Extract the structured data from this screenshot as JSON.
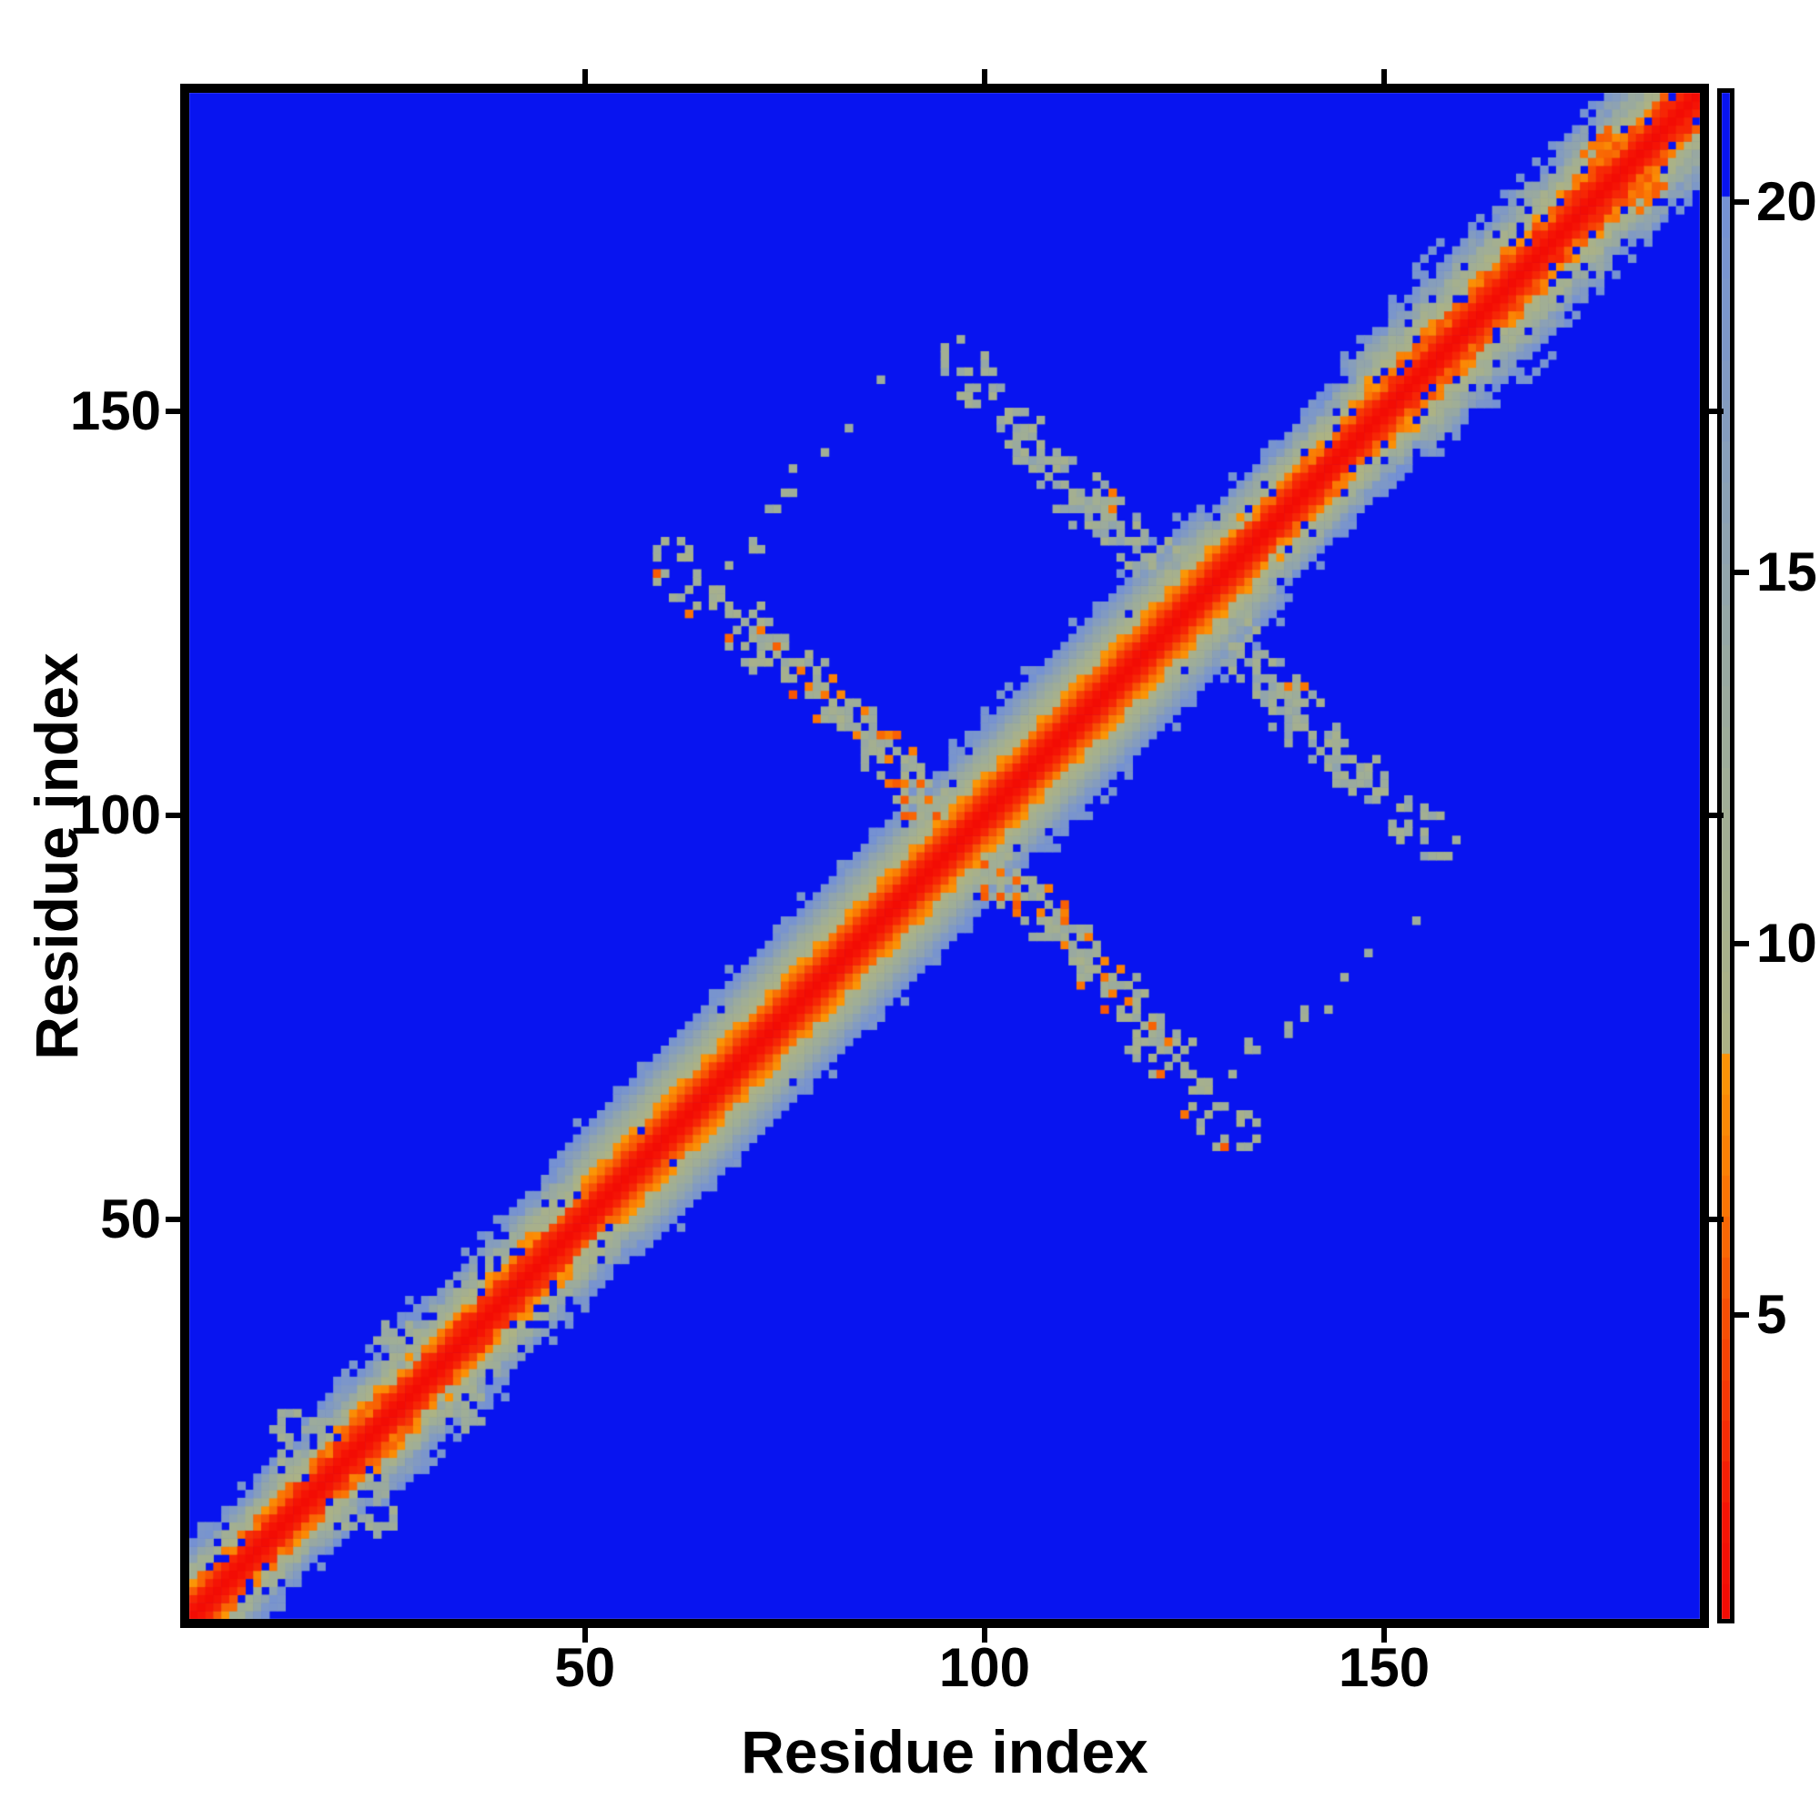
{
  "labels": {
    "x_title": "Residue index",
    "y_title": "Residue index"
  },
  "colors": {
    "background": "#ffffff",
    "frame": "#000000",
    "blue_far": "#0814f0",
    "red_near": "#f30b04",
    "orange_mid": "#fb9606",
    "tan_mid": "#a7b08c",
    "slate_mid": "#7e98c7"
  },
  "chart_data": {
    "type": "heatmap",
    "title": "",
    "xlabel": "Residue index",
    "ylabel": "Residue index",
    "n_residues": 189,
    "x_ticks": [
      50,
      100,
      150
    ],
    "y_ticks": [
      50,
      100,
      150
    ],
    "x_range": [
      1,
      189
    ],
    "y_range": [
      1,
      189
    ],
    "colorbar_ticks": [
      5,
      10,
      15,
      20
    ],
    "value_range": [
      0.9,
      21.47
    ],
    "blue_cutoff": 20,
    "background_value": 25,
    "seed": 11,
    "colormap_stops": [
      [
        0.9,
        "#f30b04"
      ],
      [
        2.3,
        "#f51505"
      ],
      [
        3.3,
        "#f62c05"
      ],
      [
        4.4,
        "#f74304"
      ],
      [
        5.6,
        "#f85c04"
      ],
      [
        6.8,
        "#fa7a04"
      ],
      [
        8.45,
        "#fb9606"
      ],
      [
        8.46,
        "#adb383"
      ],
      [
        10,
        "#a7b08c"
      ],
      [
        12,
        "#a0ae96"
      ],
      [
        14,
        "#97a8a3"
      ],
      [
        16,
        "#8ba1b5"
      ],
      [
        18,
        "#7e98c7"
      ],
      [
        19.99,
        "#7491d4"
      ],
      [
        20,
        "#0814f0"
      ],
      [
        25,
        "#0814f0"
      ]
    ],
    "diagonal": {
      "core_values": [
        1.0,
        2.0,
        3.05
      ],
      "max_band_halfwidth": 16,
      "fringe_speckle": 0.16,
      "regions": [
        {
          "upto": 20,
          "slope": 2.45,
          "noise": 2.0,
          "dropout": 0.12
        },
        {
          "upto": 52,
          "slope": 2.1,
          "noise": 1.8,
          "dropout": 0.1
        },
        {
          "upto": 132,
          "slope": 1.8,
          "noise": 0.55,
          "dropout": 0.015
        },
        {
          "upto": 150,
          "slope": 2.2,
          "noise": 1.6,
          "dropout": 0.1
        },
        {
          "upto": 168,
          "slope": 1.75,
          "noise": 1.7,
          "dropout": 0.1
        },
        {
          "upto": 189,
          "slope": 1.8,
          "noise": 2.1,
          "dropout": 0.13
        }
      ]
    },
    "features": [
      {
        "name": "antidiagonal-arm-A",
        "kind": "band",
        "points": [
          [
            59,
            132
          ],
          [
            78,
            117
          ],
          [
            97,
            97
          ]
        ],
        "width": 3.3,
        "density": [
          0.42,
          0.85
        ],
        "value": [
          9.5,
          14.0
        ],
        "orange_prob": [
          0.12,
          0.28
        ],
        "orange_value": [
          5.2,
          7.8
        ]
      },
      {
        "name": "antidiagonal-arm-B",
        "kind": "band",
        "points": [
          [
            95,
            158
          ],
          [
            111,
            140
          ],
          [
            127,
            127
          ]
        ],
        "width": 3.6,
        "density": [
          0.35,
          0.75
        ],
        "value": [
          10.0,
          15.5
        ],
        "orange_prob": [
          0.0,
          0.02
        ],
        "orange_value": [
          6.0,
          8.0
        ]
      },
      {
        "name": "parallel-band-C",
        "kind": "band",
        "points": [
          [
            68,
            131
          ],
          [
            87,
            155
          ]
        ],
        "width": 2.0,
        "density": [
          0.25,
          0.3
        ],
        "value": [
          10.8,
          14.0
        ],
        "orange_prob": [
          0.0,
          0.0
        ],
        "orange_value": [
          6.0,
          8.0
        ]
      },
      {
        "name": "low-end-blob-1",
        "kind": "blob",
        "center": [
          13.5,
          23.0
        ],
        "r": 4,
        "density": 0.4,
        "value": [
          10.5,
          14.5
        ]
      },
      {
        "name": "low-end-blob-2",
        "kind": "blob",
        "center": [
          27.0,
          34.5
        ],
        "r": 3,
        "density": 0.5,
        "value": [
          10.5,
          14.5
        ]
      },
      {
        "name": "corner-orange-bulge",
        "kind": "blob",
        "center": [
          181.5,
          178.0
        ],
        "r": 3,
        "density": 0.75,
        "value": [
          5.5,
          8.2
        ]
      }
    ]
  }
}
